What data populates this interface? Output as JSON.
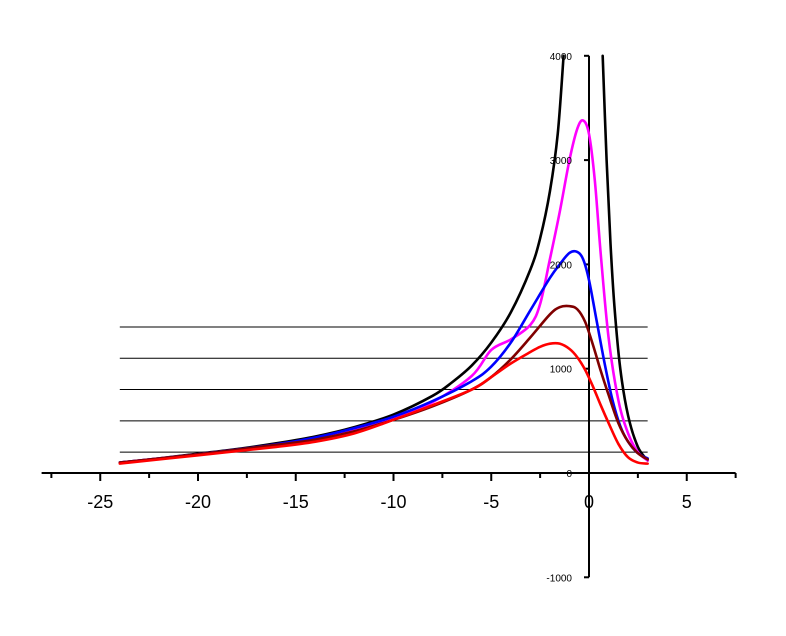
{
  "chart_data": {
    "type": "line",
    "title": "",
    "xlabel": "",
    "ylabel": "",
    "xlim": [
      -28,
      7.5
    ],
    "ylim": [
      -1000,
      4000
    ],
    "xticks_major": [
      -25,
      -20,
      -15,
      -10,
      -5,
      0,
      5
    ],
    "xtick_labels": [
      "-25",
      "-20",
      "-15",
      "-10",
      "-5",
      "0",
      "5"
    ],
    "xticks_minor": [
      -27.5,
      -22.5,
      -17.5,
      -12.5,
      -7.5,
      -2.5,
      2.5,
      7.5
    ],
    "yticks": [
      -1000,
      0,
      1000,
      2000,
      3000,
      4000
    ],
    "ytick_labels": [
      "-1000",
      "0",
      "1000",
      "2000",
      "3000",
      "4000"
    ],
    "hlines": [
      {
        "y": 200,
        "xmin": -24,
        "xmax": 3
      },
      {
        "y": 500,
        "xmin": -24,
        "xmax": 3
      },
      {
        "y": 800,
        "xmin": -24,
        "xmax": 3
      },
      {
        "y": 1100,
        "xmin": -24,
        "xmax": 3
      },
      {
        "y": 1400,
        "xmin": -24,
        "xmax": 3
      }
    ],
    "grid": false,
    "series": [
      {
        "color": "#000000",
        "segments": [
          {
            "x": [
              -24,
              -22,
              -20,
              -18,
              -16,
              -14,
              -12,
              -10,
              -8,
              -7,
              -6,
              -5,
              -4,
              -3,
              -2.5,
              -2,
              -1.6,
              -1.3
            ],
            "y": [
              100,
              140,
              185,
              230,
              285,
              350,
              440,
              560,
              740,
              870,
              1030,
              1250,
              1540,
              1950,
              2250,
              2700,
              3250,
              4000
            ]
          },
          {
            "x": [
              0.7,
              0.9,
              1.1,
              1.3,
              1.6,
              2.0,
              2.5,
              3.0
            ],
            "y": [
              4000,
              3000,
              2200,
              1600,
              1000,
              550,
              250,
              120
            ]
          }
        ]
      },
      {
        "color": "#ff00ff",
        "x": [
          -24,
          -20,
          -16,
          -14,
          -12,
          -10,
          -8,
          -6,
          -5,
          -4,
          -3,
          -2.5,
          -2,
          -1.5,
          -1,
          -0.6,
          -0.3,
          0,
          0.3,
          0.6,
          1.0,
          1.5,
          2.0,
          2.5,
          3.0
        ],
        "y": [
          100,
          180,
          270,
          330,
          420,
          530,
          680,
          930,
          1180,
          1280,
          1420,
          1620,
          2050,
          2500,
          3000,
          3300,
          3380,
          3250,
          2800,
          2100,
          1300,
          700,
          380,
          200,
          120
        ]
      },
      {
        "color": "#0000ff",
        "x": [
          -24,
          -20,
          -16,
          -14,
          -12,
          -10,
          -8,
          -6,
          -5,
          -4,
          -3,
          -2,
          -1.5,
          -1,
          -0.6,
          -0.3,
          0,
          0.4,
          0.8,
          1.2,
          1.6,
          2.0,
          2.5,
          3.0
        ],
        "y": [
          100,
          180,
          275,
          340,
          430,
          540,
          690,
          880,
          1020,
          1250,
          1560,
          1870,
          2000,
          2110,
          2120,
          2050,
          1850,
          1450,
          1050,
          700,
          450,
          300,
          190,
          140
        ]
      },
      {
        "color": "#800000",
        "x": [
          -24,
          -20,
          -16,
          -14,
          -12,
          -10,
          -8,
          -6,
          -5,
          -4,
          -3,
          -2,
          -1.5,
          -1,
          -0.6,
          -0.2,
          0.2,
          0.6,
          1.0,
          1.5,
          2.0,
          2.5,
          3.0
        ],
        "y": [
          100,
          180,
          270,
          320,
          400,
          510,
          640,
          800,
          920,
          1090,
          1300,
          1520,
          1590,
          1600,
          1570,
          1450,
          1230,
          980,
          750,
          480,
          300,
          190,
          130
        ]
      },
      {
        "color": "#ff0000",
        "x": [
          -24,
          -20,
          -16,
          -14,
          -12,
          -10,
          -8,
          -6,
          -5,
          -4,
          -3,
          -2.5,
          -2,
          -1.5,
          -1,
          -0.6,
          -0.2,
          0.2,
          0.6,
          1.0,
          1.5,
          2.0,
          2.5,
          3.0
        ],
        "y": [
          90,
          170,
          250,
          300,
          380,
          510,
          650,
          800,
          920,
          1050,
          1160,
          1210,
          1240,
          1240,
          1190,
          1110,
          990,
          830,
          650,
          480,
          280,
          150,
          100,
          90
        ]
      }
    ]
  }
}
